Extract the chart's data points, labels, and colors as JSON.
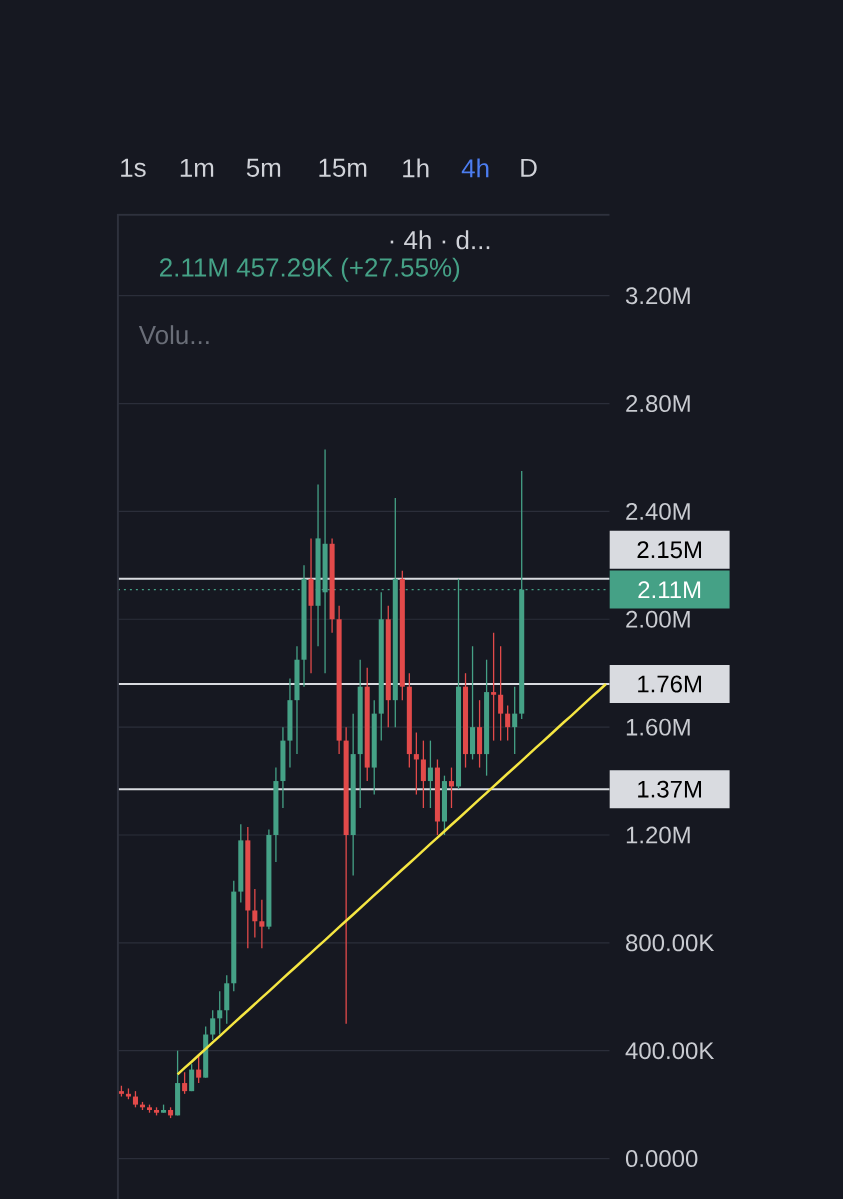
{
  "chart_data": {
    "type": "candlestick",
    "categories": [
      null,
      null,
      null,
      null,
      null,
      null,
      null,
      null,
      null,
      null,
      null,
      null,
      null,
      null,
      null,
      null,
      null,
      null,
      null,
      null,
      null,
      null,
      null,
      null,
      null,
      null,
      null,
      null,
      null,
      null,
      null,
      null,
      null,
      null,
      null,
      null,
      null,
      null,
      null,
      null,
      null,
      null,
      null,
      null,
      null,
      null,
      null,
      null,
      null,
      null,
      null,
      null,
      null,
      null,
      null,
      null,
      null,
      null,
      null,
      null,
      null,
      null,
      null,
      null,
      null,
      null,
      null,
      null,
      null,
      null
    ],
    "series": [
      {
        "ohlc": [
          [
            250000,
            270000,
            230000,
            240000
          ],
          [
            240000,
            260000,
            220000,
            230000
          ],
          [
            230000,
            250000,
            190000,
            200000
          ],
          [
            200000,
            210000,
            180000,
            190000
          ],
          [
            190000,
            200000,
            170000,
            180000
          ],
          [
            180000,
            190000,
            160000,
            170000
          ],
          [
            170000,
            200000,
            170000,
            180000
          ],
          [
            180000,
            190000,
            150000,
            160000
          ],
          [
            160000,
            400000,
            160000,
            280000
          ],
          [
            280000,
            320000,
            240000,
            250000
          ],
          [
            250000,
            350000,
            250000,
            330000
          ],
          [
            330000,
            380000,
            280000,
            300000
          ],
          [
            300000,
            490000,
            300000,
            460000
          ],
          [
            460000,
            550000,
            440000,
            520000
          ],
          [
            520000,
            620000,
            460000,
            550000
          ],
          [
            550000,
            680000,
            500000,
            650000
          ],
          [
            650000,
            1030000,
            620000,
            990000
          ],
          [
            990000,
            1240000,
            950000,
            1180000
          ],
          [
            1180000,
            1230000,
            780000,
            920000
          ],
          [
            920000,
            1000000,
            820000,
            880000
          ],
          [
            880000,
            960000,
            780000,
            860000
          ],
          [
            860000,
            1220000,
            850000,
            1200000
          ],
          [
            1200000,
            1450000,
            1100000,
            1400000
          ],
          [
            1400000,
            1600000,
            1300000,
            1550000
          ],
          [
            1550000,
            1780000,
            1450000,
            1700000
          ],
          [
            1700000,
            1900000,
            1500000,
            1850000
          ],
          [
            1850000,
            2200000,
            1750000,
            2150000
          ],
          [
            2150000,
            2300000,
            1800000,
            2050000
          ],
          [
            2050000,
            2500000,
            1900000,
            2300000
          ],
          [
            2100000,
            2630000,
            1800000,
            2280000
          ],
          [
            2280000,
            2300000,
            1950000,
            2000000
          ],
          [
            2000000,
            2050000,
            1500000,
            1550000
          ],
          [
            1550000,
            1600000,
            500000,
            1200000
          ],
          [
            1200000,
            1650000,
            1050000,
            1500000
          ],
          [
            1500000,
            1850000,
            1300000,
            1750000
          ],
          [
            1750000,
            1820000,
            1400000,
            1450000
          ],
          [
            1450000,
            1700000,
            1350000,
            1650000
          ],
          [
            1650000,
            2100000,
            1550000,
            2000000
          ],
          [
            2000000,
            2050000,
            1600000,
            1700000
          ],
          [
            1700000,
            2450000,
            1600000,
            2150000
          ],
          [
            2150000,
            2180000,
            1700000,
            1750000
          ],
          [
            1750000,
            1800000,
            1450000,
            1500000
          ],
          [
            1500000,
            1580000,
            1350000,
            1480000
          ],
          [
            1480000,
            1550000,
            1300000,
            1400000
          ],
          [
            1400000,
            1550000,
            1300000,
            1450000
          ],
          [
            1450000,
            1480000,
            1200000,
            1250000
          ],
          [
            1250000,
            1420000,
            1200000,
            1400000
          ],
          [
            1400000,
            1450000,
            1300000,
            1380000
          ],
          [
            1380000,
            2150000,
            1370000,
            1750000
          ],
          [
            1750000,
            1800000,
            1450000,
            1500000
          ],
          [
            1500000,
            1900000,
            1480000,
            1600000
          ],
          [
            1600000,
            1700000,
            1450000,
            1500000
          ],
          [
            1500000,
            1850000,
            1420000,
            1730000
          ],
          [
            1730000,
            1950000,
            1550000,
            1720000
          ],
          [
            1720000,
            1900000,
            1550000,
            1650000
          ],
          [
            1650000,
            1680000,
            1550000,
            1600000
          ],
          [
            1600000,
            1750000,
            1500000,
            1650000
          ],
          [
            1650000,
            2550000,
            1630000,
            2110000
          ],
          null,
          null,
          null,
          null,
          null,
          null,
          null,
          null,
          null,
          null,
          null,
          null
        ],
        "colors": [
          "#e24a4a",
          "#e24a4a",
          "#e24a4a",
          "#e24a4a",
          "#e24a4a",
          "#e24a4a",
          "#45a186",
          "#e24a4a",
          "#45a186",
          "#e24a4a",
          "#45a186",
          "#e24a4a",
          "#45a186",
          "#45a186",
          "#45a186",
          "#45a186",
          "#45a186",
          "#45a186",
          "#e24a4a",
          "#e24a4a",
          "#e24a4a",
          "#45a186",
          "#45a186",
          "#45a186",
          "#45a186",
          "#45a186",
          "#45a186",
          "#e24a4a",
          "#45a186",
          "#45a186",
          "#e24a4a",
          "#e24a4a",
          "#e24a4a",
          "#45a186",
          "#45a186",
          "#e24a4a",
          "#45a186",
          "#45a186",
          "#e24a4a",
          "#45a186",
          "#e24a4a",
          "#e24a4a",
          "#e24a4a",
          "#e24a4a",
          "#45a186",
          "#e24a4a",
          "#45a186",
          "#e24a4a",
          "#45a186",
          "#e24a4a",
          "#45a186",
          "#e24a4a",
          "#45a186",
          "#e24a4a",
          "#e24a4a",
          "#e24a4a",
          "#45a186",
          "#45a186",
          null,
          null,
          null,
          null,
          null,
          null,
          null,
          null,
          null,
          null,
          null,
          null
        ]
      },
      {
        "type": "line",
        "values": [
          null,
          null,
          null,
          null,
          null,
          null,
          null,
          null,
          312000,
          336000,
          359000,
          383000,
          407000,
          431000,
          454000,
          478000,
          502000,
          526000,
          549000,
          573000,
          597000,
          620000,
          644000,
          668000,
          692000,
          715000,
          739000,
          763000,
          787000,
          810000,
          834000,
          858000,
          882000,
          905000,
          929000,
          953000,
          977000,
          1000000,
          1024000,
          1048000,
          1072000,
          1095000,
          1119000,
          1143000,
          1167000,
          1190000,
          1214000,
          1238000,
          1261000,
          1285000,
          1309000,
          1333000,
          1356000,
          1380000,
          1404000,
          1428000,
          1451000,
          1475000,
          1499000,
          1523000,
          1546000,
          1570000,
          1594000,
          1618000,
          1641000,
          1665000,
          1689000,
          1713000,
          1736000,
          1760000
        ],
        "color": "#f5e642"
      }
    ],
    "ylim": [
      -150000,
      3500000
    ],
    "yticks": [
      {
        "value": 0,
        "label": "0.0000"
      },
      {
        "value": 400000,
        "label": "400.00K"
      },
      {
        "value": 800000,
        "label": "800.00K"
      },
      {
        "value": 1200000,
        "label": "1.20M"
      },
      {
        "value": 1600000,
        "label": "1.60M"
      },
      {
        "value": 2000000,
        "label": "2.00M"
      },
      {
        "value": 2400000,
        "label": "2.40M"
      },
      {
        "value": 2800000,
        "label": "2.80M"
      },
      {
        "value": 3200000,
        "label": "3.20M"
      }
    ],
    "grid": "y",
    "tick_labels": "y",
    "ref_lines": [
      {
        "axis": "y",
        "value": 2150000,
        "label": "2.15M",
        "color": "#d9dbe0",
        "line_style": "solid"
      },
      {
        "axis": "y",
        "value": 2110000,
        "label": "2.11M",
        "color": "#45a186",
        "line_style": "dotted"
      },
      {
        "axis": "y",
        "value": 1760000,
        "label": "1.76M",
        "color": "#d9dbe0",
        "line_style": "solid"
      },
      {
        "axis": "y",
        "value": 1370000,
        "label": "1.37M",
        "color": "#d9dbe0",
        "line_style": "solid"
      }
    ],
    "annotations": [
      "1s",
      "1m",
      "5m",
      "15m",
      "1h",
      "4h",
      "D",
      "· 4h · d...",
      "2.11M 457.29K (+27.55%)",
      "Volu..."
    ]
  }
}
